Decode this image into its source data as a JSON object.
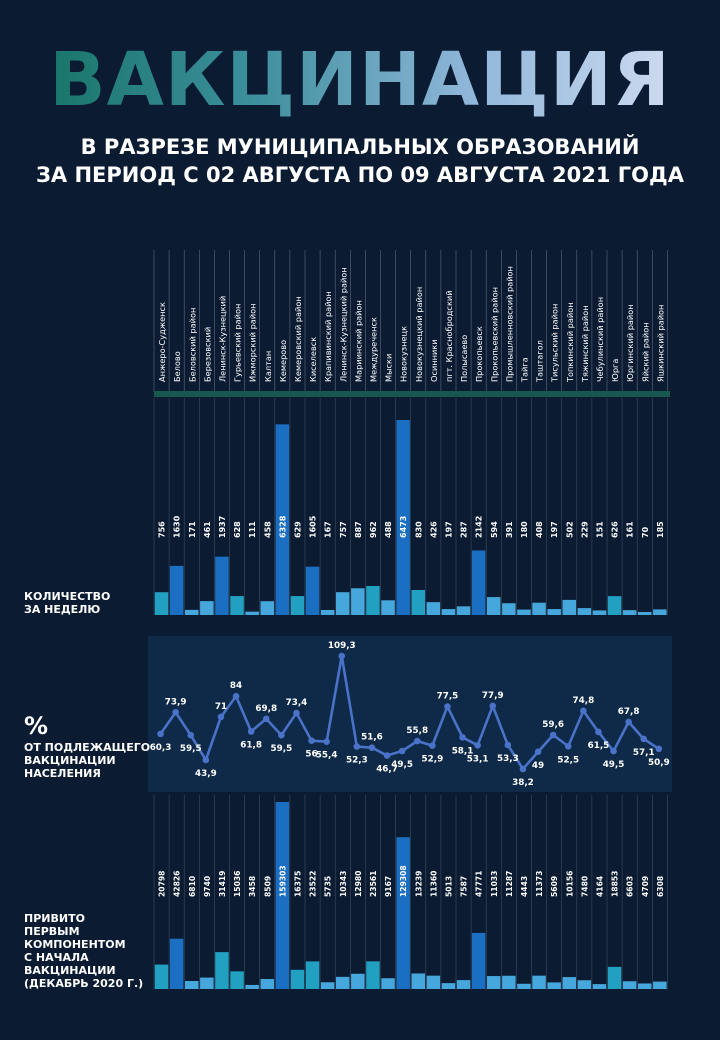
{
  "header": {
    "title": "ВАКЦИНАЦИЯ",
    "subtitle_line1": "В РАЗРЕЗЕ МУНИЦИПАЛЬНЫХ ОБРАЗОВАНИЙ",
    "subtitle_line2": "ЗА ПЕРИОД С 02 АВГУСТА ПО 09 АВГУСТА 2021 ГОДА"
  },
  "labels": {
    "weekly": "КОЛИЧЕСТВО\nЗА НЕДЕЛЮ",
    "percent_symbol": "%",
    "percent": "ОТ ПОДЛЕЖАЩЕГО\nВАКЦИНАЦИИ\nНАСЕЛЕНИЯ",
    "first_component": "ПРИВИТО\nПЕРВЫМ\nКОМПОНЕНТОМ\nС НАЧАЛА\nВАКЦИНАЦИИ\n(ДЕКАБРЬ 2020 Г.)"
  },
  "colors": {
    "background": "#0b1b32",
    "band": "#16584f",
    "panel": "#0e2a48",
    "line": "#4a72c8",
    "bar_blue": "#1b6fc2",
    "bar_teal": "#22a0c2",
    "bar_light": "#45a7dc"
  },
  "chart_data": [
    {
      "type": "bar",
      "categories": [
        "Анжеро-Судженск",
        "Белово",
        "Беловский район",
        "Березовский",
        "Ленинск-Кузнецкий",
        "Гурьевский район",
        "Ижморский район",
        "Калтан",
        "Кемерово",
        "Кемеровский район",
        "Киселевск",
        "Крапивинский район",
        "Ленинск-Кузнецкий район",
        "Мариинский район",
        "Междуреченск",
        "Мыски",
        "Новокузнецк",
        "Новокузнецкий район",
        "Осинники",
        "пгт. Краснобродский",
        "Полысаево",
        "Прокопьевск",
        "Прокопьевский район",
        "Промышленновский район",
        "Тайга",
        "Таштагол",
        "Тисульский район",
        "Топкинский район",
        "Тяжинский район",
        "Чебулинский район",
        "Юрга",
        "Юргинский район",
        "Яйский район",
        "Яшкинский район"
      ],
      "series": [
        {
          "values": [
            756,
            1630,
            171,
            461,
            1937,
            628,
            111,
            458,
            6328,
            629,
            1605,
            167,
            757,
            887,
            962,
            488,
            6473,
            830,
            426,
            197,
            287,
            2142,
            594,
            391,
            180,
            408,
            197,
            502,
            229,
            151,
            626,
            161,
            70,
            185
          ]
        }
      ],
      "value_labels": [
        "756",
        "1630",
        "171",
        "461",
        "1937",
        "628",
        "111",
        "458",
        "6328",
        "629",
        "1605",
        "167",
        "757",
        "887",
        "962",
        "488",
        "6473",
        "830",
        "426",
        "197",
        "287",
        "2142",
        "594",
        "391",
        "180",
        "408",
        "197",
        "502",
        "229",
        "151",
        "626",
        "161",
        "70",
        "185"
      ]
    },
    {
      "type": "line",
      "series": [
        {
          "values": [
            60.3,
            73.9,
            59.5,
            43.9,
            71,
            84,
            61.8,
            69.8,
            59.5,
            73.4,
            56,
            55.4,
            109.3,
            52.3,
            51.6,
            46.7,
            49.5,
            55.8,
            52.9,
            77.5,
            58.1,
            53.1,
            77.9,
            53.3,
            38.2,
            49,
            59.6,
            52.5,
            74.8,
            61.5,
            49.5,
            67.8,
            57.1,
            50.9
          ]
        }
      ],
      "value_labels": [
        "60,3",
        "73,9",
        "59,5",
        "43,9",
        "71",
        "84",
        "61,8",
        "69,8",
        "59,5",
        "73,4",
        "56",
        "55,4",
        "109,3",
        "52,3",
        "51,6",
        "46,7",
        "49,5",
        "55,8",
        "52,9",
        "77,5",
        "58,1",
        "53,1",
        "77,9",
        "53,3",
        "38,2",
        "49",
        "59,6",
        "52,5",
        "74,8",
        "61,5",
        "49,5",
        "67,8",
        "57,1",
        "50,9"
      ]
    },
    {
      "type": "bar",
      "series": [
        {
          "values": [
            20798,
            42826,
            6810,
            9740,
            31419,
            15036,
            3458,
            8509,
            159303,
            16375,
            23522,
            5735,
            10343,
            12980,
            23561,
            9167,
            129308,
            13239,
            11360,
            5013,
            7587,
            47771,
            11033,
            11287,
            4443,
            11373,
            5609,
            10156,
            7480,
            4164,
            18853,
            6603,
            4709,
            6308
          ]
        }
      ],
      "value_labels": [
        "20798",
        "42826",
        "6810",
        "9740",
        "31419",
        "15036",
        "3458",
        "8509",
        "159303",
        "16375",
        "23522",
        "5735",
        "10343",
        "12980",
        "23561",
        "9167",
        "129308",
        "13239",
        "11360",
        "5013",
        "7587",
        "47771",
        "11033",
        "11287",
        "4443",
        "11373",
        "5609",
        "10156",
        "7480",
        "4164",
        "18853",
        "6603",
        "4709",
        "6308"
      ]
    }
  ]
}
